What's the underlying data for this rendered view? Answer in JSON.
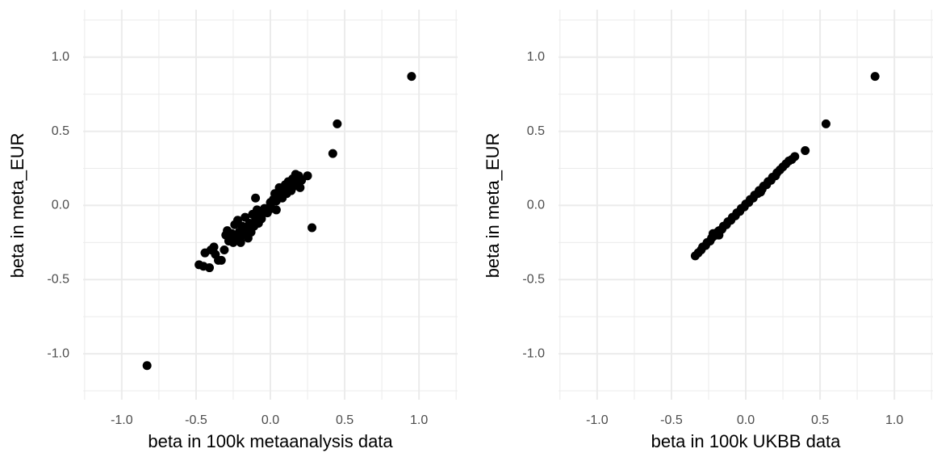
{
  "chart_data": [
    {
      "type": "scatter",
      "xlabel": "beta in 100k metaanalysis data",
      "ylabel": "beta in meta_EUR",
      "color": "#000000",
      "grid": true,
      "xlim": [
        -1.26,
        1.26
      ],
      "ylim": [
        -1.31,
        1.32
      ],
      "xticks": [
        {
          "value": -1.0,
          "label": "-1.0"
        },
        {
          "value": -0.5,
          "label": "-0.5"
        },
        {
          "value": 0.0,
          "label": "0.0"
        },
        {
          "value": 0.5,
          "label": "0.5"
        },
        {
          "value": 1.0,
          "label": "1.0"
        }
      ],
      "yticks": [
        {
          "value": -1.0,
          "label": "-1.0"
        },
        {
          "value": -0.5,
          "label": "-0.5"
        },
        {
          "value": 0.0,
          "label": "0.0"
        },
        {
          "value": 0.5,
          "label": "0.5"
        },
        {
          "value": 1.0,
          "label": "1.0"
        }
      ],
      "xminorticks": [
        -1.25,
        -0.75,
        -0.25,
        0.25,
        0.75,
        1.25
      ],
      "yminorticks": [
        -1.25,
        -0.75,
        -0.25,
        0.25,
        0.75,
        1.25
      ],
      "x": [
        -0.83,
        0.95,
        0.45,
        0.42,
        0.28,
        -0.1,
        -0.48,
        -0.45,
        -0.44,
        -0.41,
        -0.4,
        -0.38,
        -0.37,
        -0.35,
        -0.33,
        -0.31,
        -0.3,
        -0.29,
        -0.28,
        -0.26,
        -0.25,
        -0.24,
        -0.23,
        -0.22,
        -0.21,
        -0.2,
        -0.19,
        -0.18,
        -0.17,
        -0.16,
        -0.15,
        -0.14,
        -0.13,
        -0.12,
        -0.11,
        -0.1,
        -0.09,
        -0.08,
        -0.07,
        -0.06,
        -0.05,
        -0.04,
        -0.02,
        0.0,
        0.01,
        0.02,
        0.03,
        0.04,
        0.05,
        0.06,
        0.07,
        0.08,
        0.09,
        0.1,
        0.11,
        0.12,
        0.13,
        0.14,
        0.15,
        0.16,
        0.17,
        0.18,
        0.19,
        0.2,
        0.21,
        0.25,
        0.04
      ],
      "y": [
        -1.08,
        0.87,
        0.55,
        0.35,
        -0.15,
        0.05,
        -0.4,
        -0.41,
        -0.32,
        -0.42,
        -0.3,
        -0.28,
        -0.33,
        -0.37,
        -0.37,
        -0.3,
        -0.2,
        -0.17,
        -0.24,
        -0.19,
        -0.25,
        -0.13,
        -0.22,
        -0.1,
        -0.18,
        -0.25,
        -0.14,
        -0.2,
        -0.08,
        -0.16,
        -0.22,
        -0.12,
        -0.18,
        -0.06,
        -0.14,
        -0.1,
        -0.03,
        -0.12,
        -0.06,
        -0.09,
        -0.04,
        -0.02,
        -0.05,
        0.02,
        -0.02,
        0.04,
        0.08,
        0.03,
        0.06,
        0.12,
        0.09,
        0.05,
        0.11,
        0.14,
        0.08,
        0.16,
        0.12,
        0.1,
        0.18,
        0.13,
        0.21,
        0.16,
        0.2,
        0.12,
        0.17,
        0.2,
        -0.03
      ]
    },
    {
      "type": "scatter",
      "xlabel": "beta in 100k UKBB data",
      "ylabel": "beta in meta_EUR",
      "color": "#000000",
      "grid": true,
      "xlim": [
        -1.26,
        1.26
      ],
      "ylim": [
        -1.31,
        1.32
      ],
      "xticks": [
        {
          "value": -1.0,
          "label": "-1.0"
        },
        {
          "value": -0.5,
          "label": "-0.5"
        },
        {
          "value": 0.0,
          "label": "0.0"
        },
        {
          "value": 0.5,
          "label": "0.5"
        },
        {
          "value": 1.0,
          "label": "1.0"
        }
      ],
      "yticks": [
        {
          "value": -1.0,
          "label": "-1.0"
        },
        {
          "value": -0.5,
          "label": "-0.5"
        },
        {
          "value": 0.0,
          "label": "0.0"
        },
        {
          "value": 0.5,
          "label": "0.5"
        },
        {
          "value": 1.0,
          "label": "1.0"
        }
      ],
      "xminorticks": [
        -1.25,
        -0.75,
        -0.25,
        0.25,
        0.75,
        1.25
      ],
      "yminorticks": [
        -1.25,
        -0.75,
        -0.25,
        0.25,
        0.75,
        1.25
      ],
      "x": [
        -0.34,
        -0.32,
        -0.3,
        -0.29,
        -0.27,
        -0.26,
        -0.24,
        -0.23,
        -0.22,
        -0.2,
        -0.19,
        -0.18,
        -0.16,
        -0.15,
        -0.13,
        -0.12,
        -0.1,
        -0.09,
        -0.07,
        -0.06,
        -0.04,
        -0.03,
        -0.01,
        0.0,
        0.02,
        0.03,
        0.05,
        0.06,
        0.08,
        0.09,
        0.11,
        0.12,
        0.14,
        0.15,
        0.17,
        0.18,
        0.2,
        0.21,
        0.23,
        0.25,
        0.27,
        0.29,
        0.31,
        0.33,
        0.4,
        0.54,
        0.87,
        -0.22,
        -0.18,
        0.1
      ],
      "y": [
        -0.34,
        -0.32,
        -0.3,
        -0.28,
        -0.27,
        -0.25,
        -0.24,
        -0.22,
        -0.21,
        -0.2,
        -0.18,
        -0.17,
        -0.16,
        -0.14,
        -0.13,
        -0.11,
        -0.1,
        -0.08,
        -0.07,
        -0.05,
        -0.04,
        -0.02,
        -0.01,
        0.01,
        0.02,
        0.04,
        0.05,
        0.07,
        0.08,
        0.1,
        0.11,
        0.13,
        0.14,
        0.16,
        0.17,
        0.19,
        0.2,
        0.22,
        0.24,
        0.26,
        0.28,
        0.3,
        0.31,
        0.33,
        0.37,
        0.55,
        0.87,
        -0.19,
        -0.2,
        0.09
      ]
    }
  ]
}
